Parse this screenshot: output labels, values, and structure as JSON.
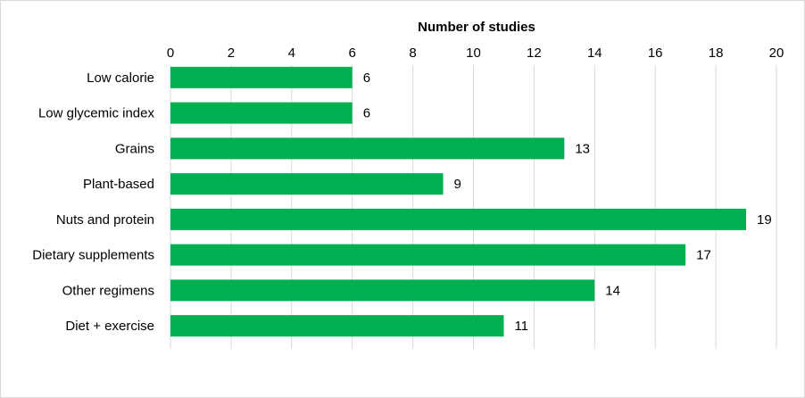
{
  "chart_data": {
    "type": "bar",
    "orientation": "horizontal",
    "title": "",
    "xlabel": "Number of studies",
    "ylabel": "",
    "xlim": [
      0,
      20
    ],
    "x_ticks": [
      0,
      2,
      4,
      6,
      8,
      10,
      12,
      14,
      16,
      18,
      20
    ],
    "x_axis_position": "top",
    "grid": true,
    "legend": "none",
    "bar_color": "#00b050",
    "categories": [
      "Low calorie",
      "Low glycemic index",
      "Grains",
      "Plant-based",
      "Nuts and protein",
      "Dietary supplements",
      "Other regimens",
      "Diet + exercise"
    ],
    "values": [
      6,
      6,
      13,
      9,
      19,
      17,
      14,
      11
    ],
    "data_labels": true
  }
}
